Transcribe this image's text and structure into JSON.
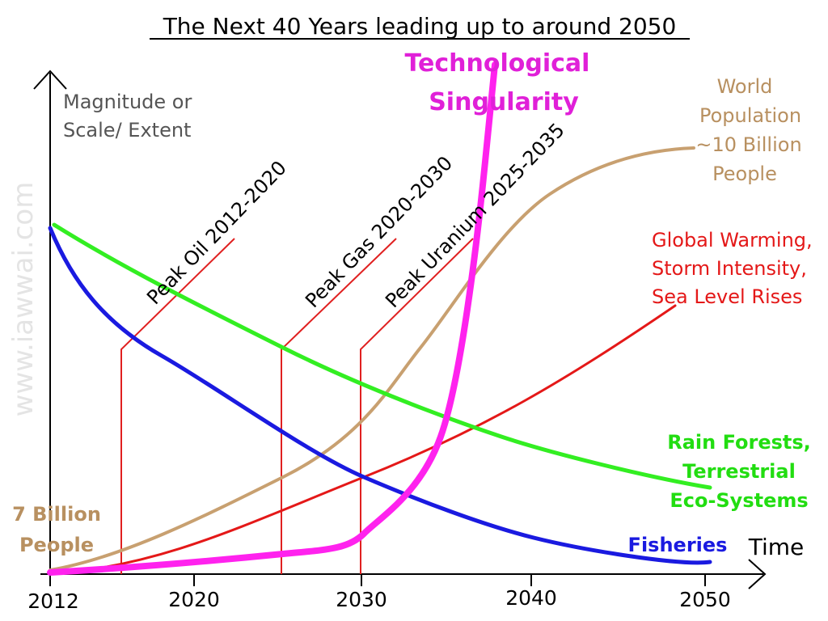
{
  "title": "The Next 40 Years leading up to around 2050",
  "y_axis_label": {
    "lines": [
      "Magnitude or",
      "Scale/ Extent"
    ]
  },
  "x_axis_label": "Time",
  "x_ticks": [
    "2012",
    "2020",
    "2030",
    "2040",
    "2050"
  ],
  "watermark": "www.iawwai.com",
  "labels": {
    "singularity": {
      "lines": [
        "Technological",
        "Singularity"
      ]
    },
    "population": {
      "lines": [
        "World",
        "Population",
        "~10 Billion",
        "People"
      ]
    },
    "warming": {
      "lines": [
        "Global Warming,",
        "Storm Intensity,",
        "Sea Level Rises"
      ]
    },
    "forests": {
      "lines": [
        "Rain Forests,",
        "Terrestrial",
        "Eco-Systems"
      ]
    },
    "fisheries": "Fisheries",
    "start_population": {
      "lines": [
        "7 Billion",
        "People"
      ]
    },
    "peak_oil": "Peak Oil 2012-2020",
    "peak_gas": "Peak Gas 2020-2030",
    "peak_uranium": "Peak Uranium 2025-2035"
  }
}
